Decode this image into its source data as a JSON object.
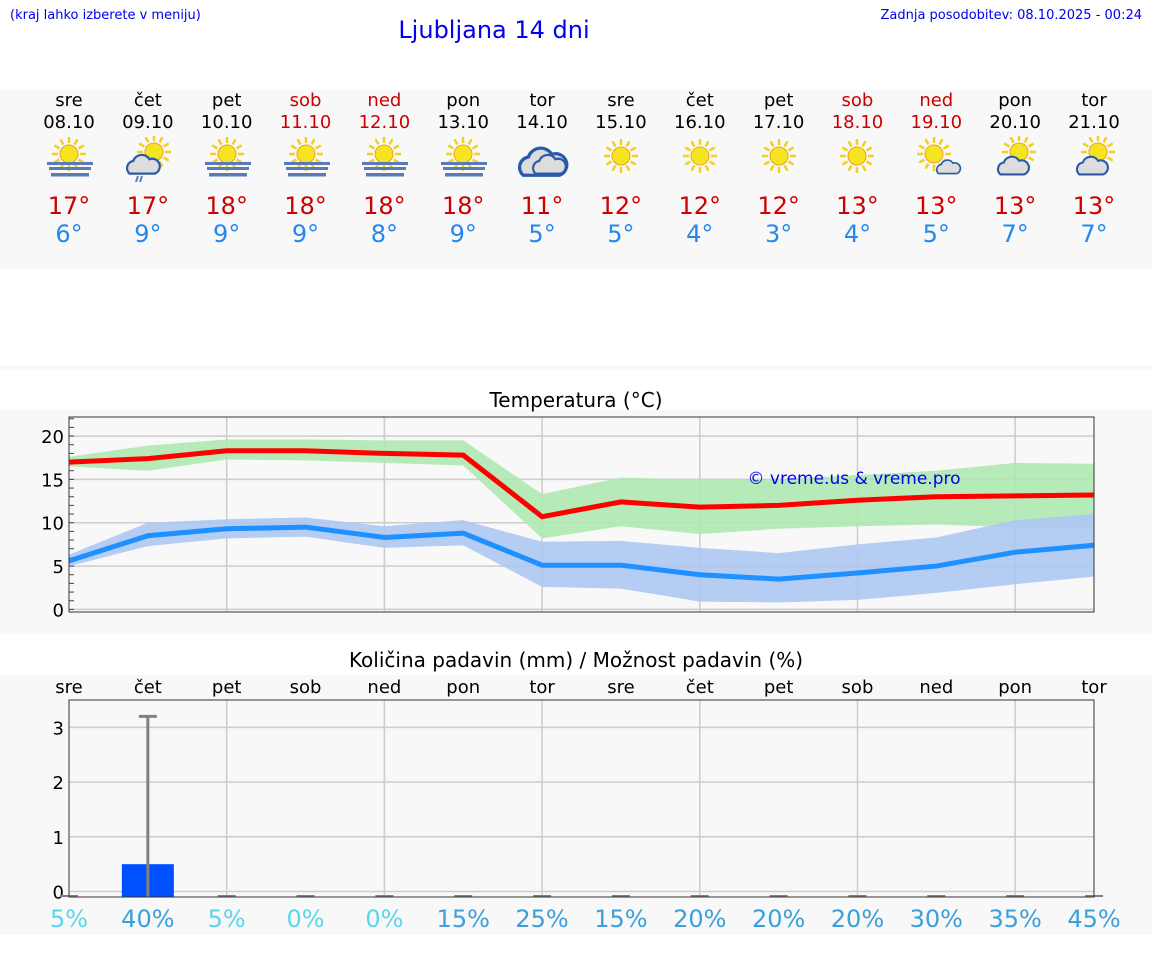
{
  "header": {
    "hint": "(kraj lahko izberete v meniju)",
    "title": "Ljubljana 14 dni",
    "updated": "Zadnja posodobitev: 08.10.2025 - 00:24"
  },
  "days": [
    {
      "name": "sre",
      "date": "08.10",
      "icon": "sun-fog",
      "max": "17°",
      "min": "6°",
      "weekend": false
    },
    {
      "name": "čet",
      "date": "09.10",
      "icon": "sun-cloud-rain",
      "max": "17°",
      "min": "9°",
      "weekend": false
    },
    {
      "name": "pet",
      "date": "10.10",
      "icon": "sun-fog",
      "max": "18°",
      "min": "9°",
      "weekend": false
    },
    {
      "name": "sob",
      "date": "11.10",
      "icon": "sun-fog",
      "max": "18°",
      "min": "9°",
      "weekend": true
    },
    {
      "name": "ned",
      "date": "12.10",
      "icon": "sun-fog",
      "max": "18°",
      "min": "8°",
      "weekend": true
    },
    {
      "name": "pon",
      "date": "13.10",
      "icon": "sun-fog",
      "max": "18°",
      "min": "9°",
      "weekend": false
    },
    {
      "name": "tor",
      "date": "14.10",
      "icon": "cloudy",
      "max": "11°",
      "min": "5°",
      "weekend": false
    },
    {
      "name": "sre",
      "date": "15.10",
      "icon": "sun",
      "max": "12°",
      "min": "5°",
      "weekend": false
    },
    {
      "name": "čet",
      "date": "16.10",
      "icon": "sun",
      "max": "12°",
      "min": "4°",
      "weekend": false
    },
    {
      "name": "pet",
      "date": "17.10",
      "icon": "sun",
      "max": "12°",
      "min": "3°",
      "weekend": false
    },
    {
      "name": "sob",
      "date": "18.10",
      "icon": "sun",
      "max": "13°",
      "min": "4°",
      "weekend": true
    },
    {
      "name": "ned",
      "date": "19.10",
      "icon": "sun-small-cloud",
      "max": "13°",
      "min": "5°",
      "weekend": true
    },
    {
      "name": "pon",
      "date": "20.10",
      "icon": "sun-cloud",
      "max": "13°",
      "min": "7°",
      "weekend": false
    },
    {
      "name": "tor",
      "date": "21.10",
      "icon": "sun-cloud",
      "max": "13°",
      "min": "7°",
      "weekend": false
    }
  ],
  "colors": {
    "max": "#cc0000",
    "min": "#2288ee",
    "max_band": "#aee8b0",
    "min_band": "#adc6f2",
    "max_line": "#ff0000",
    "min_line": "#1e90ff",
    "bar": "#0050ff",
    "pct_low": "#5ad6ea",
    "pct_high": "#3a9fdb"
  },
  "chart_data": [
    {
      "type": "line",
      "title": "Temperatura (°C)",
      "ylim": [
        -0.3,
        22.2
      ],
      "yticks": [
        0,
        5,
        10,
        15,
        20
      ],
      "grid": true,
      "watermark": "© vreme.us & vreme.pro",
      "series": [
        {
          "values": [
            17.0,
            17.4,
            18.3,
            18.3,
            18.0,
            17.8,
            10.7,
            12.4,
            11.8,
            12.0,
            12.6,
            13.0,
            13.1,
            13.2
          ],
          "band_low": [
            16.5,
            16.0,
            17.3,
            17.2,
            16.9,
            16.6,
            8.2,
            9.6,
            8.7,
            9.3,
            9.6,
            9.8,
            9.5,
            9.4
          ],
          "band_high": [
            17.6,
            18.9,
            19.6,
            19.6,
            19.5,
            19.5,
            13.3,
            15.2,
            15.0,
            15.0,
            15.5,
            16.0,
            16.9,
            16.8
          ]
        },
        {
          "values": [
            5.6,
            8.5,
            9.3,
            9.5,
            8.3,
            8.8,
            5.1,
            5.1,
            4.0,
            3.5,
            4.2,
            5.0,
            6.6,
            7.4
          ],
          "band_low": [
            5.0,
            7.3,
            8.2,
            8.4,
            7.1,
            7.4,
            2.6,
            2.4,
            0.9,
            0.8,
            1.1,
            1.9,
            2.9,
            3.8
          ],
          "band_high": [
            6.3,
            10.0,
            10.4,
            10.6,
            9.6,
            10.3,
            7.8,
            7.9,
            7.1,
            6.5,
            7.5,
            8.3,
            10.3,
            11.0
          ]
        }
      ]
    },
    {
      "type": "bar",
      "title": "Količina padavin (mm) / Možnost padavin (%)",
      "categories": [
        "sre",
        "čet",
        "pet",
        "sob",
        "ned",
        "pon",
        "tor",
        "sre",
        "čet",
        "pet",
        "sob",
        "ned",
        "pon",
        "tor"
      ],
      "ylim": [
        -0.1,
        3.5
      ],
      "yticks": [
        0,
        1,
        2,
        3
      ],
      "grid": true,
      "values": [
        0,
        0.5,
        0,
        0,
        0,
        0,
        0,
        0,
        0,
        0,
        0,
        0,
        0,
        0
      ],
      "error_high": [
        0,
        3.2,
        0,
        0,
        0,
        0,
        0,
        0,
        0,
        0,
        0,
        0,
        0,
        0
      ],
      "probability": [
        "5%",
        "40%",
        "5%",
        "0%",
        "0%",
        "15%",
        "25%",
        "15%",
        "20%",
        "20%",
        "20%",
        "30%",
        "35%",
        "45%"
      ]
    }
  ]
}
